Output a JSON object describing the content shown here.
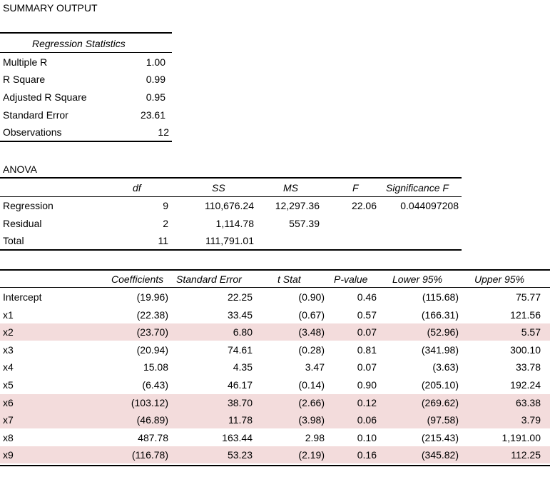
{
  "title": "SUMMARY OUTPUT",
  "regression_statistics": {
    "header": "Regression Statistics",
    "rows": [
      {
        "label": "Multiple R",
        "value": "1.00"
      },
      {
        "label": "R Square",
        "value": "0.99"
      },
      {
        "label": "Adjusted R Square",
        "value": "0.95"
      },
      {
        "label": "Standard Error",
        "value": "23.61"
      },
      {
        "label": "Observations",
        "value": "12"
      }
    ]
  },
  "anova": {
    "title": "ANOVA",
    "headers": [
      "df",
      "SS",
      "MS",
      "F",
      "Significance F"
    ],
    "rows": [
      {
        "label": "Regression",
        "df": "9",
        "ss": "110,676.24",
        "ms": "12,297.36",
        "f": "22.06",
        "sig_f": "0.044097208"
      },
      {
        "label": "Residual",
        "df": "2",
        "ss": "1,114.78",
        "ms": "557.39",
        "f": "",
        "sig_f": ""
      },
      {
        "label": "Total",
        "df": "11",
        "ss": "111,791.01",
        "ms": "",
        "f": "",
        "sig_f": ""
      }
    ]
  },
  "coefficients": {
    "headers": [
      "Coefficients",
      "Standard Error",
      "t Stat",
      "P-value",
      "Lower 95%",
      "Upper 95%"
    ],
    "highlight_color": "#f3dcdc",
    "rows": [
      {
        "label": "Intercept",
        "coef": "(19.96)",
        "se": "22.25",
        "t": "(0.90)",
        "p": "0.46",
        "lower": "(115.68)",
        "upper": "75.77",
        "highlight": false
      },
      {
        "label": "x1",
        "coef": "(22.38)",
        "se": "33.45",
        "t": "(0.67)",
        "p": "0.57",
        "lower": "(166.31)",
        "upper": "121.56",
        "highlight": false
      },
      {
        "label": "x2",
        "coef": "(23.70)",
        "se": "6.80",
        "t": "(3.48)",
        "p": "0.07",
        "lower": "(52.96)",
        "upper": "5.57",
        "highlight": true
      },
      {
        "label": "x3",
        "coef": "(20.94)",
        "se": "74.61",
        "t": "(0.28)",
        "p": "0.81",
        "lower": "(341.98)",
        "upper": "300.10",
        "highlight": false
      },
      {
        "label": "x4",
        "coef": "15.08",
        "se": "4.35",
        "t": "3.47",
        "p": "0.07",
        "lower": "(3.63)",
        "upper": "33.78",
        "highlight": false
      },
      {
        "label": "x5",
        "coef": "(6.43)",
        "se": "46.17",
        "t": "(0.14)",
        "p": "0.90",
        "lower": "(205.10)",
        "upper": "192.24",
        "highlight": false
      },
      {
        "label": "x6",
        "coef": "(103.12)",
        "se": "38.70",
        "t": "(2.66)",
        "p": "0.12",
        "lower": "(269.62)",
        "upper": "63.38",
        "highlight": true
      },
      {
        "label": "x7",
        "coef": "(46.89)",
        "se": "11.78",
        "t": "(3.98)",
        "p": "0.06",
        "lower": "(97.58)",
        "upper": "3.79",
        "highlight": true
      },
      {
        "label": "x8",
        "coef": "487.78",
        "se": "163.44",
        "t": "2.98",
        "p": "0.10",
        "lower": "(215.43)",
        "upper": "1,191.00",
        "highlight": false
      },
      {
        "label": "x9",
        "coef": "(116.78)",
        "se": "53.23",
        "t": "(2.19)",
        "p": "0.16",
        "lower": "(345.82)",
        "upper": "112.25",
        "highlight": true
      }
    ]
  }
}
